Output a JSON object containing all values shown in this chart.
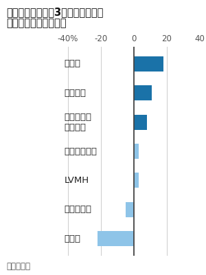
{
  "title_line1": "高級ブランドの第3四半期売上高、",
  "title_line2": "前年同期比での増減率",
  "source": "出所：各社",
  "categories": [
    "プラダ",
    "エルメス",
    "ブルネロ・\nクチネリ",
    "モンクレール",
    "LVMH",
    "フェラガモ",
    "グッチ"
  ],
  "values": [
    18,
    11,
    8,
    3,
    3,
    -5,
    -22
  ],
  "colors": [
    "#1a72a8",
    "#1a72a8",
    "#1a72a8",
    "#8ec4e8",
    "#8ec4e8",
    "#8ec4e8",
    "#8ec4e8"
  ],
  "xlim": [
    -40,
    40
  ],
  "xticks": [
    -40,
    -20,
    0,
    20,
    40
  ],
  "xticklabels": [
    "-40%",
    "-20",
    "0",
    "20",
    "40"
  ],
  "background_color": "#ffffff",
  "bar_height": 0.52,
  "title_fontsize": 10.5,
  "tick_fontsize": 8.5,
  "label_fontsize": 9.5,
  "source_fontsize": 8.5,
  "grid_color": "#cccccc",
  "zero_line_color": "#444444"
}
